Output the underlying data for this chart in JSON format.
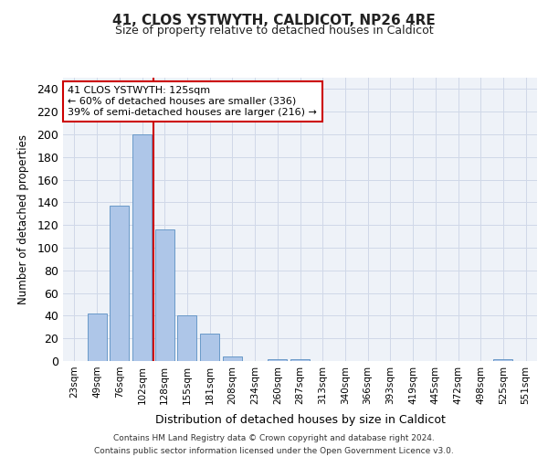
{
  "title_line1": "41, CLOS YSTWYTH, CALDICOT, NP26 4RE",
  "title_line2": "Size of property relative to detached houses in Caldicot",
  "xlabel": "Distribution of detached houses by size in Caldicot",
  "ylabel": "Number of detached properties",
  "bar_labels": [
    "23sqm",
    "49sqm",
    "76sqm",
    "102sqm",
    "128sqm",
    "155sqm",
    "181sqm",
    "208sqm",
    "234sqm",
    "260sqm",
    "287sqm",
    "313sqm",
    "340sqm",
    "366sqm",
    "393sqm",
    "419sqm",
    "445sqm",
    "472sqm",
    "498sqm",
    "525sqm",
    "551sqm"
  ],
  "bar_values": [
    0,
    42,
    137,
    200,
    116,
    40,
    24,
    4,
    0,
    2,
    2,
    0,
    0,
    0,
    0,
    0,
    0,
    0,
    0,
    2,
    0
  ],
  "bar_color": "#aec6e8",
  "bar_edgecolor": "#5a8fc2",
  "red_line_x": 3.5,
  "annotation_text": "41 CLOS YSTWYTH: 125sqm\n← 60% of detached houses are smaller (336)\n39% of semi-detached houses are larger (216) →",
  "annotation_box_color": "#ffffff",
  "annotation_box_edgecolor": "#cc0000",
  "grid_color": "#d0d8e8",
  "bg_color": "#eef2f8",
  "ylim": [
    0,
    250
  ],
  "yticks": [
    0,
    20,
    40,
    60,
    80,
    100,
    120,
    140,
    160,
    180,
    200,
    220,
    240
  ],
  "footer1": "Contains HM Land Registry data © Crown copyright and database right 2024.",
  "footer2": "Contains public sector information licensed under the Open Government Licence v3.0."
}
